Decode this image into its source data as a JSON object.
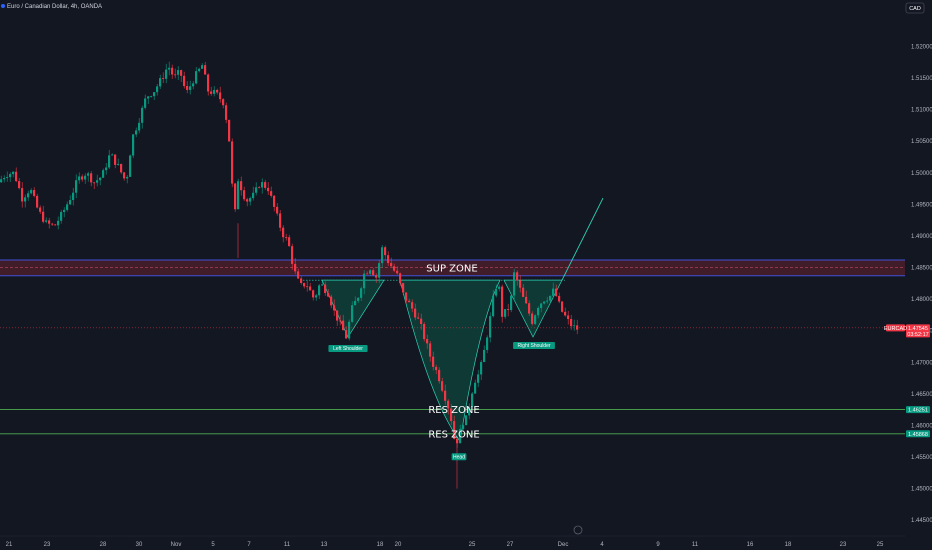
{
  "header": {
    "title": "Euro / Canadian Dollar, 4h, OANDA",
    "currency": "CAD"
  },
  "chart_data": {
    "type": "candlestick",
    "symbol": "EURCAD",
    "timeframe": "4h",
    "ylim": [
      1.4425,
      1.5245
    ],
    "y_ticks": [
      "1.52000",
      "1.51500",
      "1.51000",
      "1.50500",
      "1.50000",
      "1.49500",
      "1.49000",
      "1.48500",
      "1.48000",
      "1.47500",
      "1.47000",
      "1.46500",
      "1.46000",
      "1.45500",
      "1.45000",
      "1.44500"
    ],
    "x_ticks": [
      "21",
      "23",
      "28",
      "30",
      "Nov",
      "5",
      "7",
      "11",
      "13",
      "18",
      "20",
      "25",
      "27",
      "Dec",
      "4",
      "9",
      "11",
      "16",
      "18",
      "23",
      "25"
    ],
    "price_path": [
      [
        0,
        1.4985
      ],
      [
        8,
        1.4998
      ],
      [
        16,
        1.5
      ],
      [
        24,
        1.496
      ],
      [
        32,
        1.4975
      ],
      [
        40,
        1.494
      ],
      [
        48,
        1.492
      ],
      [
        56,
        1.4915
      ],
      [
        64,
        1.4935
      ],
      [
        72,
        1.496
      ],
      [
        80,
        1.499
      ],
      [
        88,
        1.5
      ],
      [
        96,
        1.4985
      ],
      [
        104,
        1.4995
      ],
      [
        112,
        1.503
      ],
      [
        120,
        1.501
      ],
      [
        128,
        1.4985
      ],
      [
        134,
        1.5055
      ],
      [
        140,
        1.508
      ],
      [
        148,
        1.512
      ],
      [
        156,
        1.513
      ],
      [
        164,
        1.515
      ],
      [
        170,
        1.517
      ],
      [
        176,
        1.515
      ],
      [
        182,
        1.516
      ],
      [
        188,
        1.5125
      ],
      [
        196,
        1.515
      ],
      [
        204,
        1.517
      ],
      [
        210,
        1.513
      ],
      [
        218,
        1.5125
      ],
      [
        226,
        1.511
      ],
      [
        232,
        1.504
      ],
      [
        236,
        1.492
      ],
      [
        240,
        1.499
      ],
      [
        248,
        1.4955
      ],
      [
        256,
        1.4965
      ],
      [
        262,
        1.4985
      ],
      [
        270,
        1.4975
      ],
      [
        278,
        1.4935
      ],
      [
        284,
        1.4905
      ],
      [
        290,
        1.489
      ],
      [
        296,
        1.4845
      ],
      [
        302,
        1.482
      ],
      [
        308,
        1.4825
      ],
      [
        316,
        1.48
      ],
      [
        322,
        1.4825
      ],
      [
        330,
        1.481
      ],
      [
        336,
        1.478
      ],
      [
        342,
        1.476
      ],
      [
        348,
        1.474
      ],
      [
        354,
        1.4785
      ],
      [
        360,
        1.4805
      ],
      [
        366,
        1.484
      ],
      [
        372,
        1.485
      ],
      [
        378,
        1.4835
      ],
      [
        384,
        1.488
      ],
      [
        390,
        1.486
      ],
      [
        396,
        1.4845
      ],
      [
        400,
        1.4835
      ],
      [
        404,
        1.481
      ],
      [
        410,
        1.4795
      ],
      [
        416,
        1.478
      ],
      [
        422,
        1.476
      ],
      [
        428,
        1.473
      ],
      [
        434,
        1.47
      ],
      [
        440,
        1.468
      ],
      [
        446,
        1.465
      ],
      [
        452,
        1.462
      ],
      [
        456,
        1.458
      ],
      [
        460,
        1.4575
      ],
      [
        464,
        1.4605
      ],
      [
        468,
        1.461
      ],
      [
        472,
        1.464
      ],
      [
        476,
        1.467
      ],
      [
        480,
        1.468
      ],
      [
        484,
        1.47
      ],
      [
        488,
        1.4735
      ],
      [
        492,
        1.477
      ],
      [
        496,
        1.481
      ],
      [
        500,
        1.483
      ],
      [
        504,
        1.4775
      ],
      [
        508,
        1.478
      ],
      [
        512,
        1.479
      ],
      [
        516,
        1.484
      ],
      [
        520,
        1.4825
      ],
      [
        524,
        1.4805
      ],
      [
        528,
        1.479
      ],
      [
        534,
        1.4765
      ],
      [
        540,
        1.479
      ],
      [
        546,
        1.48
      ],
      [
        552,
        1.4805
      ],
      [
        556,
        1.4815
      ],
      [
        560,
        1.4795
      ],
      [
        564,
        1.478
      ],
      [
        568,
        1.477
      ],
      [
        572,
        1.476
      ],
      [
        578,
        1.4753
      ]
    ],
    "zones": [
      {
        "label": "SUP ZONE",
        "low": 1.4837,
        "high": 1.4862
      },
      {
        "label": "RES ZONE",
        "level": 1.46251
      },
      {
        "label": "RES ZONE",
        "level": 1.45868
      }
    ],
    "zone_dashed_level": 1.485,
    "pattern": {
      "neckline": 1.483,
      "left_shoulder": {
        "label": "Left Shoulder",
        "low": 1.474
      },
      "head": {
        "label": "Head",
        "low": 1.4575
      },
      "right_shoulder": {
        "label": "Right Shoulder",
        "low": 1.474
      },
      "projection_target": 1.496
    },
    "price_tags": [
      {
        "text": "1.47545",
        "sub": "03:52:17",
        "value": 1.47545,
        "color": "#f23645"
      },
      {
        "text": "1.46251",
        "value": 1.46251,
        "color": "#089981"
      },
      {
        "text": "1.45868",
        "value": 1.45868,
        "color": "#089981"
      }
    ],
    "symbol_tag": "EURCAD",
    "colors": {
      "up": "#089981",
      "down": "#f23645",
      "zone_fill": "#4a1e2c",
      "zone_border": "#3f51d6",
      "res_line": "#4caf50",
      "pattern_fill": "#0f3d36",
      "pattern_line": "#2ad4b8"
    },
    "grid": false
  }
}
